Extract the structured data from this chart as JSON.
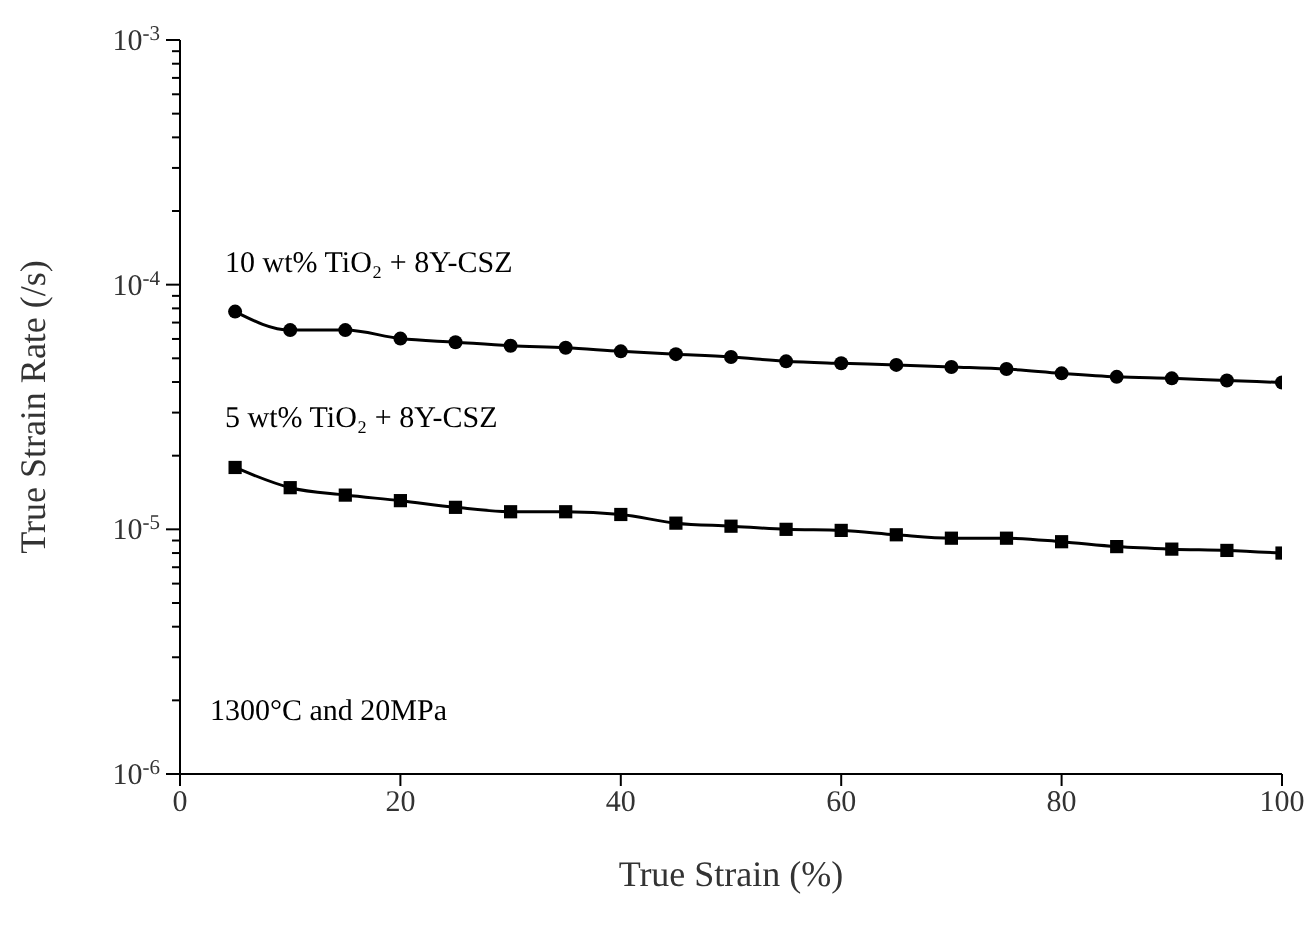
{
  "chart_data": {
    "type": "line",
    "xlabel": "True Strain (%)",
    "ylabel": "True Strain Rate (/s)",
    "x": [
      5,
      10,
      15,
      20,
      25,
      30,
      35,
      40,
      45,
      50,
      55,
      60,
      65,
      70,
      75,
      80,
      85,
      90,
      95,
      100
    ],
    "series": [
      {
        "name": "10 wt% TiO₂ + 8Y-CSZ",
        "color": "#000000",
        "marker": "circle",
        "values": [
          7.76e-05,
          6.52e-05,
          6.52e-05,
          6.02e-05,
          5.82e-05,
          5.63e-05,
          5.52e-05,
          5.34e-05,
          5.2e-05,
          5.06e-05,
          4.86e-05,
          4.77e-05,
          4.7e-05,
          4.61e-05,
          4.52e-05,
          4.34e-05,
          4.2e-05,
          4.14e-05,
          4.06e-05,
          3.98e-05
        ]
      },
      {
        "name": "5 wt% TiO₂ + 8Y-CSZ",
        "color": "#000000",
        "marker": "square",
        "values": [
          1.79e-05,
          1.48e-05,
          1.38e-05,
          1.31e-05,
          1.23e-05,
          1.18e-05,
          1.18e-05,
          1.15e-05,
          1.06e-05,
          1.03e-05,
          1e-05,
          9.9e-06,
          9.5e-06,
          9.2e-06,
          9.2e-06,
          8.9e-06,
          8.5e-06,
          8.3e-06,
          8.2e-06,
          8e-06
        ]
      }
    ],
    "xlim": [
      0,
      100
    ],
    "xticks": [
      0,
      20,
      40,
      60,
      80,
      100
    ],
    "ylim": [
      1e-06,
      0.001
    ],
    "yticks": [
      {
        "value": 1e-06,
        "label": "10$^{-6}$"
      },
      {
        "value": 2e-06,
        "label": null
      },
      {
        "value": 3e-06,
        "label": null
      },
      {
        "value": 4e-06,
        "label": null
      },
      {
        "value": 5e-06,
        "label": null
      },
      {
        "value": 6e-06,
        "label": null
      },
      {
        "value": 7e-06,
        "label": null
      },
      {
        "value": 8e-06,
        "label": null
      },
      {
        "value": 9e-06,
        "label": null
      },
      {
        "value": 1e-05,
        "label": "10$^{-5}$"
      },
      {
        "value": 2e-05,
        "label": null
      },
      {
        "value": 3e-05,
        "label": null
      },
      {
        "value": 4e-05,
        "label": null
      },
      {
        "value": 5e-05,
        "label": null
      },
      {
        "value": 6e-05,
        "label": null
      },
      {
        "value": 7e-05,
        "label": null
      },
      {
        "value": 8e-05,
        "label": null
      },
      {
        "value": 9e-05,
        "label": null
      },
      {
        "value": 0.0001,
        "label": "10$^{-4}$"
      },
      {
        "value": 0.0002,
        "label": null
      },
      {
        "value": 0.0003,
        "label": null
      },
      {
        "value": 0.0004,
        "label": null
      },
      {
        "value": 0.0005,
        "label": null
      },
      {
        "value": 0.0006,
        "label": null
      },
      {
        "value": 0.0007,
        "label": null
      },
      {
        "value": 0.0008,
        "label": null
      },
      {
        "value": 0.0009,
        "label": null
      },
      {
        "value": 0.001,
        "label": "10$^{-3}$"
      }
    ],
    "log": "y",
    "line_style": "solid",
    "annotations": [
      "1300°C and 20MPa"
    ]
  }
}
